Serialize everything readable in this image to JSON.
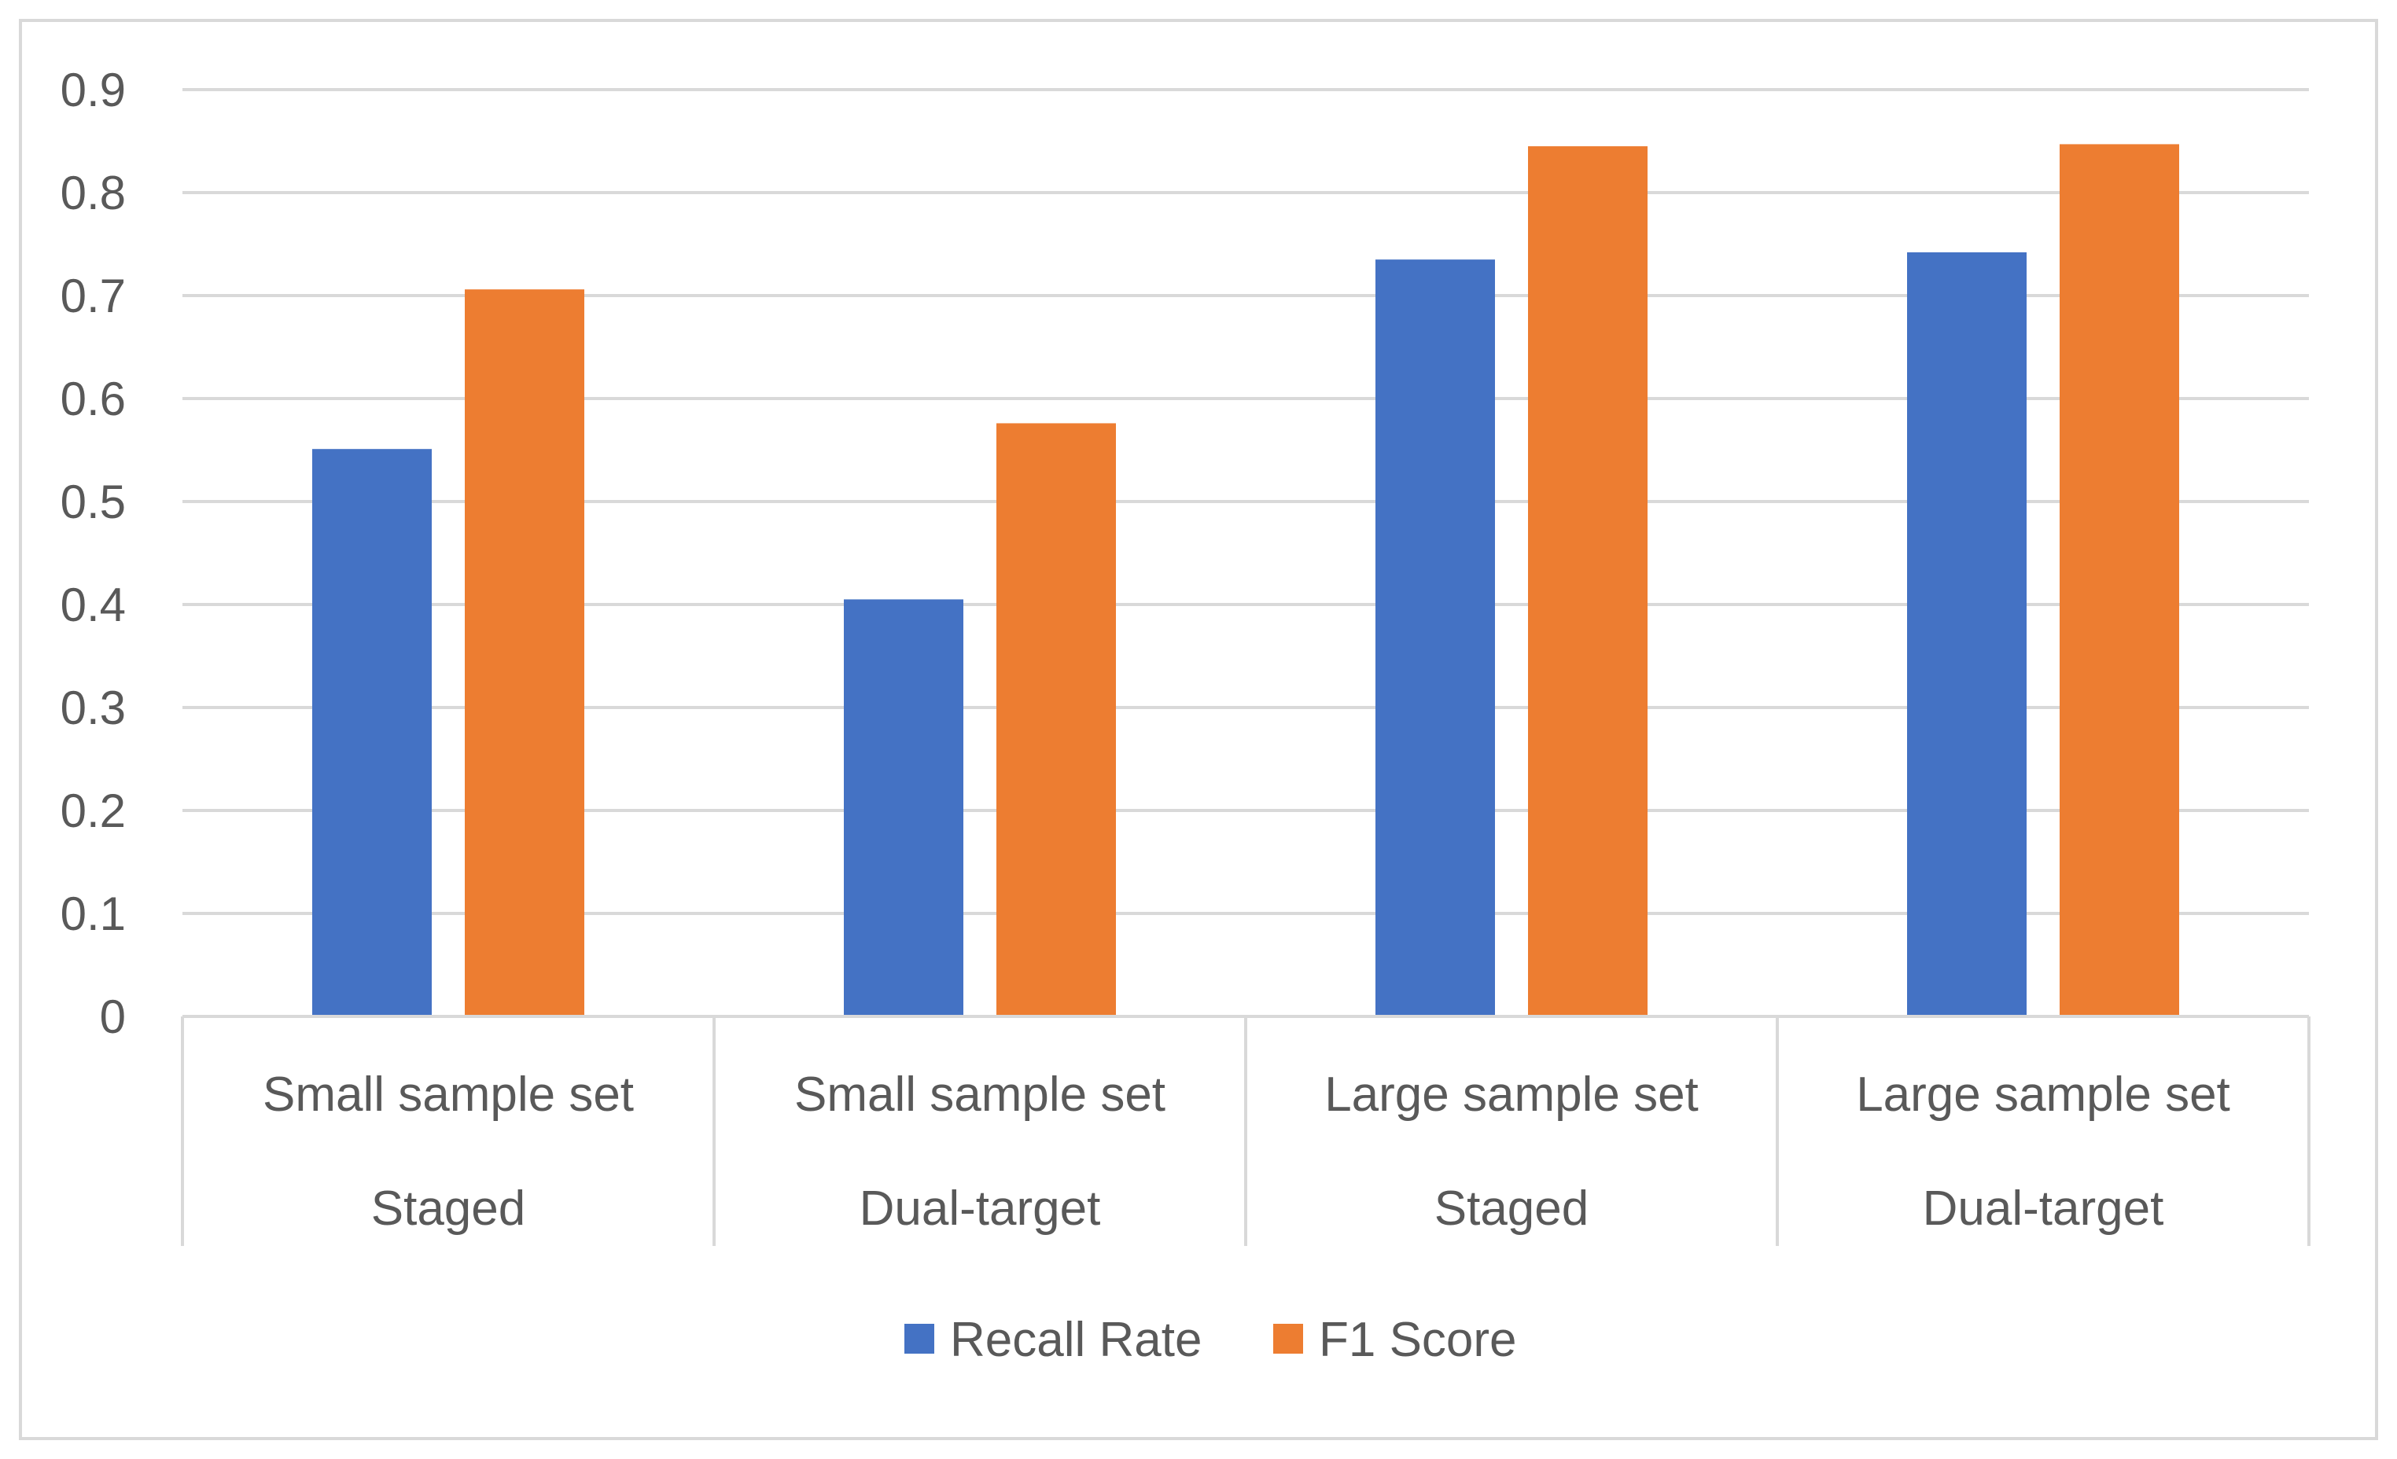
{
  "chart_data": {
    "type": "bar",
    "title": "",
    "xlabel": "",
    "ylabel": "",
    "ylim": [
      0,
      0.9
    ],
    "yticks": [
      "0",
      "0.1",
      "0.2",
      "0.3",
      "0.4",
      "0.5",
      "0.6",
      "0.7",
      "0.8",
      "0.9"
    ],
    "grid": true,
    "legend_position": "bottom",
    "categories": [
      {
        "line1": "Small sample set",
        "line2": "Staged"
      },
      {
        "line1": "Small sample set",
        "line2": "Dual-target"
      },
      {
        "line1": "Large sample set",
        "line2": "Staged"
      },
      {
        "line1": "Large sample set",
        "line2": "Dual-target"
      }
    ],
    "series": [
      {
        "name": "Recall Rate",
        "color": "#4472c4",
        "values": [
          0.551,
          0.405,
          0.735,
          0.742
        ]
      },
      {
        "name": "F1 Score",
        "color": "#ed7d31",
        "values": [
          0.706,
          0.576,
          0.845,
          0.847
        ]
      }
    ]
  }
}
